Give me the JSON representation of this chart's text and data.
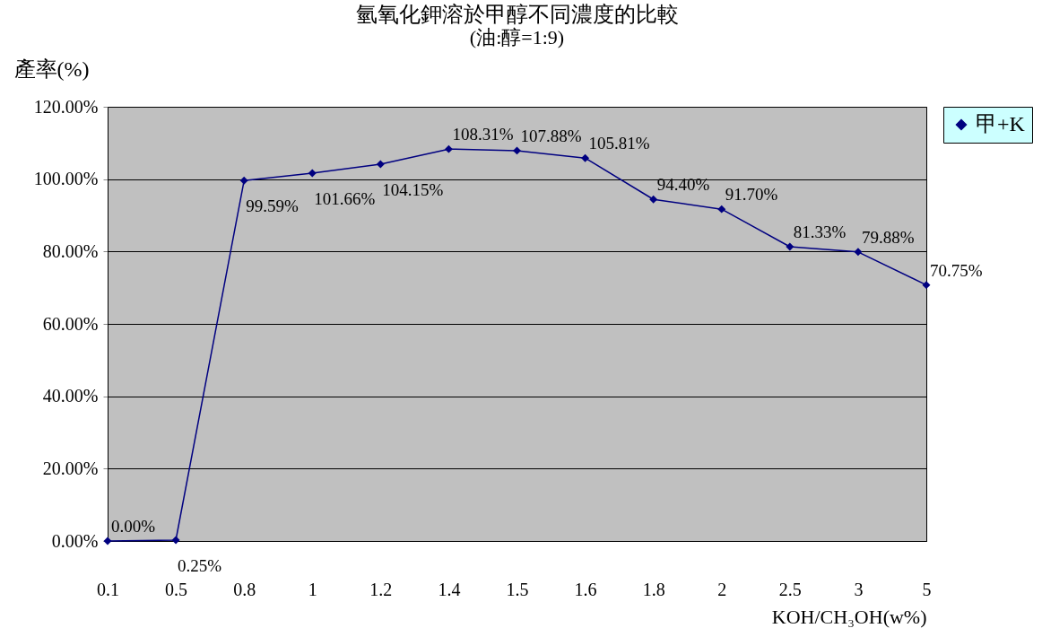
{
  "chart_data": {
    "type": "line",
    "title": "氫氧化鉀溶於甲醇不同濃度的比較",
    "subtitle": "(油:醇=1:9)",
    "xlabel": "KOH/CH₃OH(w%)",
    "ylabel": "產率(%)",
    "categories": [
      "0.1",
      "0.5",
      "0.8",
      "1",
      "1.2",
      "1.4",
      "1.5",
      "1.6",
      "1.8",
      "2",
      "2.5",
      "3",
      "5"
    ],
    "series": [
      {
        "name": "甲+K",
        "color": "#000080",
        "values": [
          0,
          0.25,
          99.59,
          101.66,
          104.15,
          108.31,
          107.88,
          105.81,
          94.4,
          91.7,
          81.33,
          79.88,
          70.75
        ],
        "value_labels": [
          "0.00%",
          "0.25%",
          "99.59%",
          "101.66%",
          "104.15%",
          "108.31%",
          "107.88%",
          "105.81%",
          "94.40%",
          "91.70%",
          "81.33%",
          "79.88%",
          "70.75%"
        ]
      }
    ],
    "ylim": [
      0,
      120
    ],
    "yticks": [
      {
        "value": 0,
        "label": "0.00%"
      },
      {
        "value": 20,
        "label": "20.00%"
      },
      {
        "value": 40,
        "label": "40.00%"
      },
      {
        "value": 60,
        "label": "60.00%"
      },
      {
        "value": 80,
        "label": "80.00%"
      },
      {
        "value": 100,
        "label": "100.00%"
      },
      {
        "value": 120,
        "label": "120.00%"
      }
    ],
    "grid": "y",
    "legend": "right",
    "marker": "diamond",
    "line_style": "solid"
  }
}
